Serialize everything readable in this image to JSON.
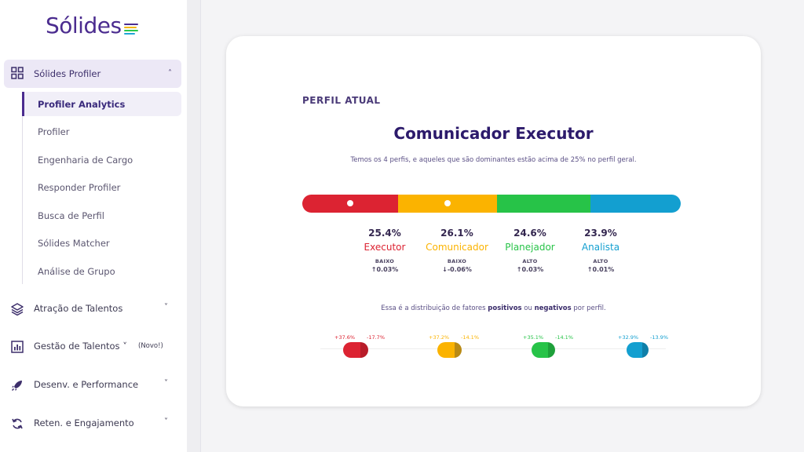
{
  "logo": {
    "text": "Sólides",
    "bar_colors": [
      "#4b2c8f",
      "#f2b705",
      "#2cc84d",
      "#1ea5d6"
    ]
  },
  "sidebar": {
    "section": {
      "label": "Sólides Profiler",
      "icon": "grid-icon",
      "expanded": true
    },
    "sub_items": [
      {
        "label": "Profiler Analytics",
        "active": true
      },
      {
        "label": "Profiler"
      },
      {
        "label": "Engenharia de Cargo"
      },
      {
        "label": "Responder Profiler"
      },
      {
        "label": "Busca de Perfil"
      },
      {
        "label": "Sólides Matcher"
      },
      {
        "label": "Análise de Grupo"
      }
    ],
    "nav": [
      {
        "label": "Atração de Talentos",
        "icon": "layers-icon"
      },
      {
        "label": "Gestão de Talentos",
        "icon": "bar-chart-icon",
        "badge": "(Novo!)"
      },
      {
        "label": "Desenv. e Performance",
        "icon": "rocket-icon"
      },
      {
        "label": "Reten. e Engajamento",
        "icon": "refresh-icon"
      }
    ]
  },
  "card": {
    "heading": "PERFIL ATUAL",
    "title": "Comunicador Executor",
    "description": "Temos os 4 perfis, e aqueles que são dominantes estão acima de 25% no perfil geral.",
    "profiles": [
      {
        "name": "Executor",
        "pct": "25.4%",
        "value": 25.4,
        "level": "BAIXO",
        "delta": "↑0.03%",
        "color": "#dc2332",
        "dominant": true
      },
      {
        "name": "Comunicador",
        "pct": "26.1%",
        "value": 26.1,
        "level": "BAIXO",
        "delta": "↓-0.06%",
        "color": "#fbb300",
        "dominant": true
      },
      {
        "name": "Planejador",
        "pct": "24.6%",
        "value": 24.6,
        "level": "ALTO",
        "delta": "↑0.03%",
        "color": "#27c348",
        "dominant": false
      },
      {
        "name": "Analista",
        "pct": "23.9%",
        "value": 23.9,
        "level": "ALTO",
        "delta": "↑0.01%",
        "color": "#139fd0",
        "dominant": false
      }
    ],
    "distribution": {
      "text_before": "Essa é a distribuição de fatores ",
      "positive_word": "positivos",
      "text_middle": " ou ",
      "negative_word": "negativos",
      "text_after": " por perfil.",
      "factors": [
        {
          "positive": "+37.6%",
          "negative": "-17.7%",
          "pos_value": 37.6,
          "neg_value": 17.7,
          "color": "#dc2332",
          "dark": "#b81c29"
        },
        {
          "positive": "+37.2%",
          "negative": "-14.1%",
          "pos_value": 37.2,
          "neg_value": 14.1,
          "color": "#fbb300",
          "dark": "#b98a14"
        },
        {
          "positive": "+35.1%",
          "negative": "-14.1%",
          "pos_value": 35.1,
          "neg_value": 14.1,
          "color": "#27c348",
          "dark": "#1ea03a"
        },
        {
          "positive": "+32.9%",
          "negative": "-13.9%",
          "pos_value": 32.9,
          "neg_value": 13.9,
          "color": "#139fd0",
          "dark": "#0f7fa8"
        }
      ]
    }
  }
}
